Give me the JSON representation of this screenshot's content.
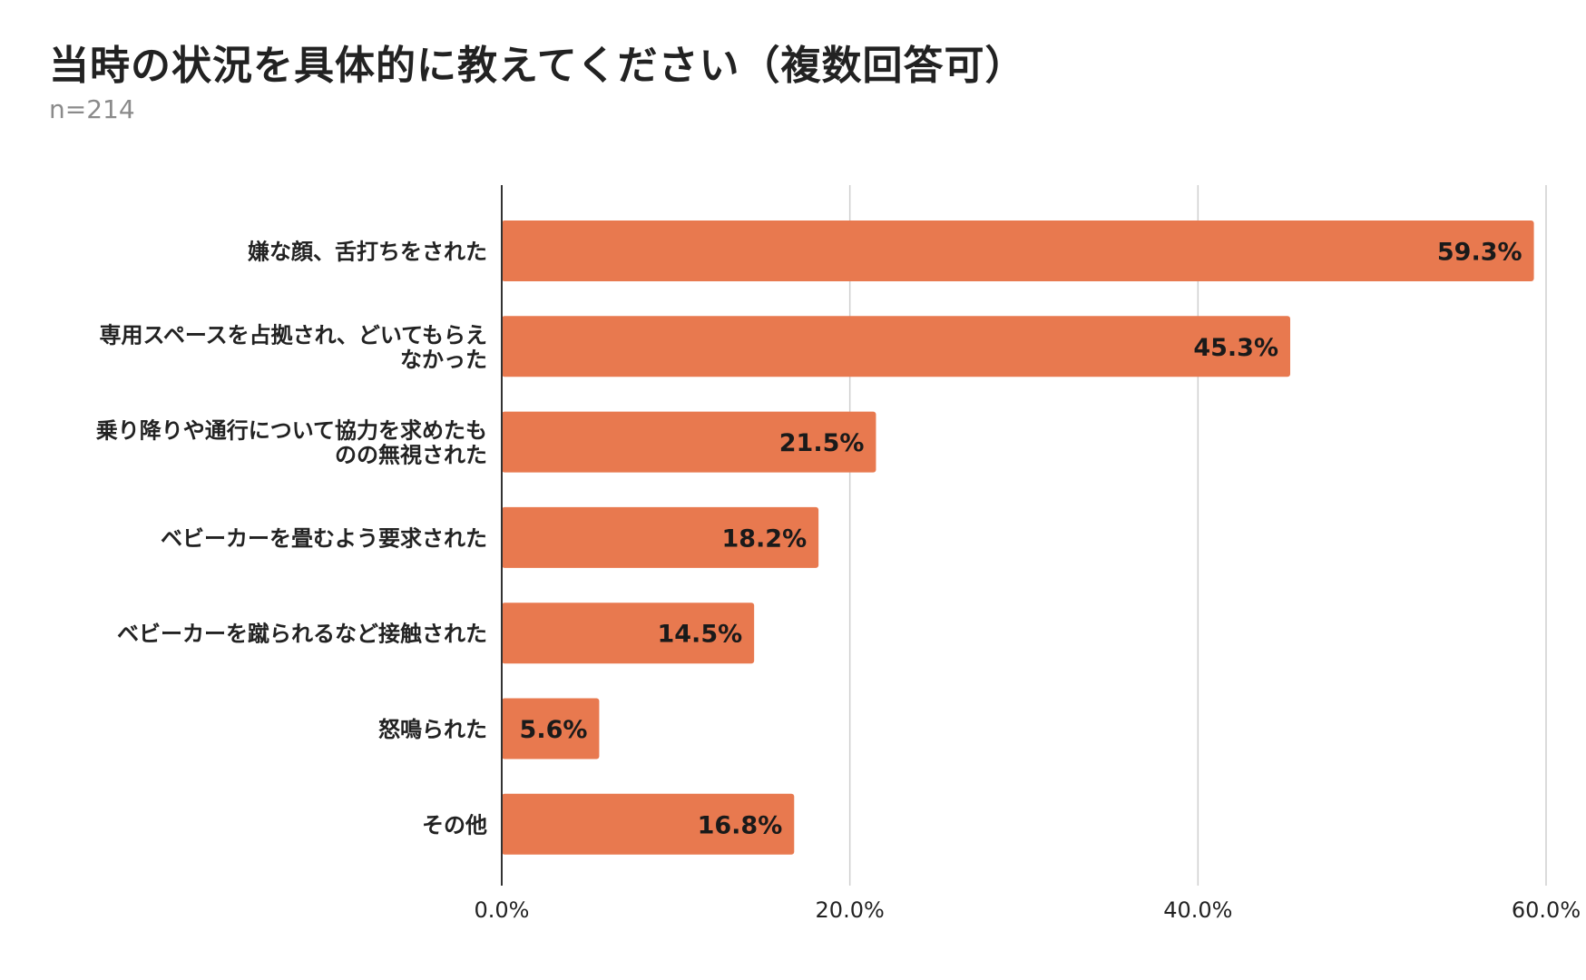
{
  "chart_data": {
    "type": "bar",
    "orientation": "horizontal",
    "title": "当時の状況を具体的に教えてください（複数回答可）",
    "subtitle": "n=214",
    "categories": [
      [
        "嫌な顔、舌打ちをされた"
      ],
      [
        "専用スペースを占拠され、どいてもらえ",
        "なかった"
      ],
      [
        "乗り降りや通行について協力を求めたも",
        "のの無視された"
      ],
      [
        "ベビーカーを畳むよう要求された"
      ],
      [
        "ベビーカーを蹴られるなど接触された"
      ],
      [
        "怒鳴られた"
      ],
      [
        "その他"
      ]
    ],
    "values": [
      59.3,
      45.3,
      21.5,
      18.2,
      14.5,
      5.6,
      16.8
    ],
    "value_labels": [
      "59.3%",
      "45.3%",
      "21.5%",
      "18.2%",
      "14.5%",
      "5.6%",
      "16.8%"
    ],
    "xlim": [
      0,
      60
    ],
    "ticks": [
      0,
      20,
      40,
      60
    ],
    "tick_labels": [
      "0.0%",
      "20.0%",
      "40.0%",
      "60.0%"
    ],
    "grid": true,
    "bar_color": "#e8794f",
    "xlabel": "",
    "ylabel": ""
  }
}
